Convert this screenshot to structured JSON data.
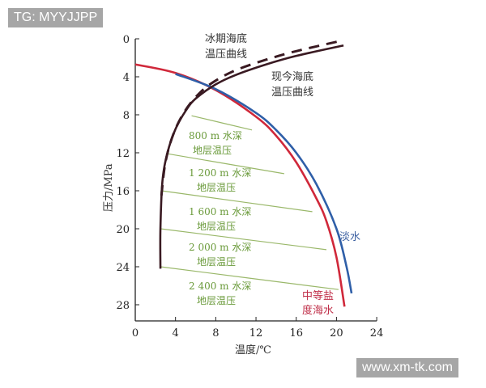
{
  "watermarks": {
    "top_left": "TG: MYYJJPP",
    "bottom_right": "www.xm-tk.com"
  },
  "chart_data": {
    "type": "line",
    "title": "",
    "xlabel": "温度/℃",
    "ylabel": "压力/MPa",
    "xlim": [
      0,
      24
    ],
    "ylim": [
      0,
      30
    ],
    "y_inverted": true,
    "xticks": [
      0,
      4,
      8,
      12,
      16,
      20,
      24
    ],
    "yticks": [
      0,
      4,
      8,
      12,
      16,
      20,
      24,
      28
    ],
    "grid": false,
    "series": [
      {
        "name": "中等盐度海水",
        "color": "#d0283a",
        "style": "solid",
        "points": [
          [
            0,
            2.7
          ],
          [
            4,
            3.6
          ],
          [
            8,
            5.4
          ],
          [
            12,
            8.2
          ],
          [
            14,
            10.2
          ],
          [
            16,
            13.0
          ],
          [
            18,
            16.8
          ],
          [
            19,
            19.2
          ],
          [
            20,
            23.0
          ],
          [
            20.8,
            28.2
          ]
        ]
      },
      {
        "name": "淡水",
        "color": "#2f5fa8",
        "style": "solid",
        "points": [
          [
            4,
            3.7
          ],
          [
            8,
            5.3
          ],
          [
            12,
            7.8
          ],
          [
            14,
            9.6
          ],
          [
            16,
            12.0
          ],
          [
            18,
            15.3
          ],
          [
            20,
            20.0
          ],
          [
            21,
            24.0
          ],
          [
            21.5,
            26.8
          ]
        ]
      },
      {
        "name": "现今海底温压曲线",
        "color": "#3a1a22",
        "style": "solid",
        "points": [
          [
            2.5,
            24.2
          ],
          [
            2.5,
            20
          ],
          [
            2.7,
            15
          ],
          [
            3.2,
            12
          ],
          [
            4,
            9.5
          ],
          [
            5,
            7.6
          ],
          [
            6,
            6.3
          ],
          [
            8,
            4.8
          ],
          [
            10,
            3.8
          ],
          [
            13,
            2.7
          ],
          [
            16,
            1.8
          ],
          [
            20.7,
            0.7
          ]
        ]
      },
      {
        "name": "冰期海底温压曲线",
        "color": "#3a1a22",
        "style": "dashed",
        "points": [
          [
            2.6,
            16.5
          ],
          [
            3,
            13
          ],
          [
            3.8,
            10
          ],
          [
            5,
            7.5
          ],
          [
            6.5,
            5.6
          ],
          [
            8,
            4.4
          ],
          [
            10,
            3.3
          ],
          [
            13,
            2.2
          ],
          [
            16,
            1.3
          ],
          [
            20.5,
            0.2
          ]
        ]
      },
      {
        "name": "800 m 水深地层温压",
        "color": "#9ab86a",
        "style": "solid",
        "points": [
          [
            5.6,
            8.1
          ],
          [
            11.6,
            9.6
          ]
        ]
      },
      {
        "name": "1 200 m 水深地层温压",
        "color": "#9ab86a",
        "style": "solid",
        "points": [
          [
            3.2,
            12.1
          ],
          [
            14.8,
            14.2
          ]
        ]
      },
      {
        "name": "1 600 m 水深地层温压",
        "color": "#9ab86a",
        "style": "solid",
        "points": [
          [
            2.6,
            16.0
          ],
          [
            17.6,
            18.2
          ]
        ]
      },
      {
        "name": "2 000 m 水深地层温压",
        "color": "#9ab86a",
        "style": "solid",
        "points": [
          [
            2.5,
            20.0
          ],
          [
            19.0,
            22.2
          ]
        ]
      },
      {
        "name": "2 400 m 水深地层温压",
        "color": "#9ab86a",
        "style": "solid",
        "points": [
          [
            2.5,
            24.0
          ],
          [
            20.2,
            26.4
          ]
        ]
      }
    ],
    "annotations": [
      {
        "text": "冰期海底",
        "text2": "温压曲线"
      },
      {
        "text": "现今海底",
        "text2": "温压曲线"
      },
      {
        "text": "800 m 水深",
        "text2": "地层温压"
      },
      {
        "text": "1 200 m 水深",
        "text2": "地层温压"
      },
      {
        "text": "1 600 m 水深",
        "text2": "地层温压"
      },
      {
        "text": "2 000 m 水深",
        "text2": "地层温压"
      },
      {
        "text": "2 400 m 水深",
        "text2": "地层温压"
      },
      {
        "text": "淡水"
      },
      {
        "text": "中等盐",
        "text2": "度海水"
      }
    ]
  }
}
